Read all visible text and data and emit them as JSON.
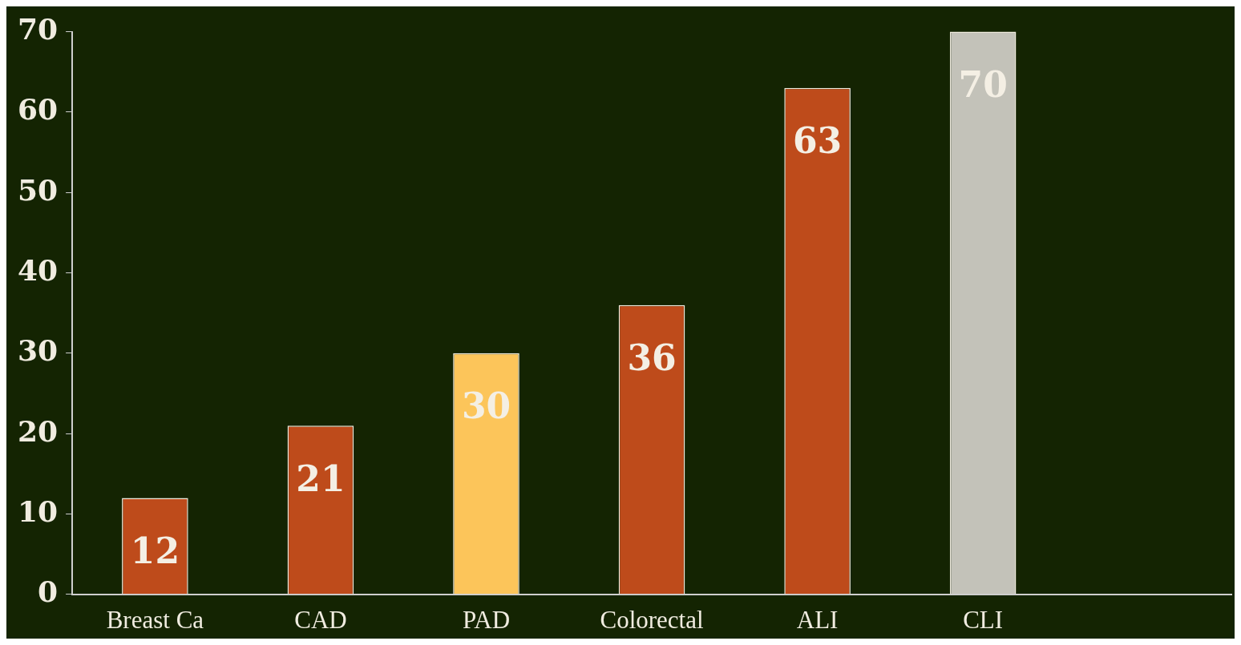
{
  "chart_data": {
    "type": "bar",
    "categories": [
      "Breast Ca",
      "CAD",
      "PAD",
      "Colorectal",
      "ALI",
      "CLI",
      null
    ],
    "values": [
      12,
      21,
      30,
      36,
      63,
      70,
      null
    ],
    "colors": [
      "#be4b1b",
      "#be4b1b",
      "#fcc55a",
      "#be4b1b",
      "#be4b1b",
      "#c3c2b9",
      null
    ],
    "ylim": [
      0,
      70
    ],
    "yticks": [
      0,
      10,
      20,
      30,
      40,
      50,
      60,
      70
    ],
    "grid": false,
    "legend": false,
    "data_labels": true
  }
}
